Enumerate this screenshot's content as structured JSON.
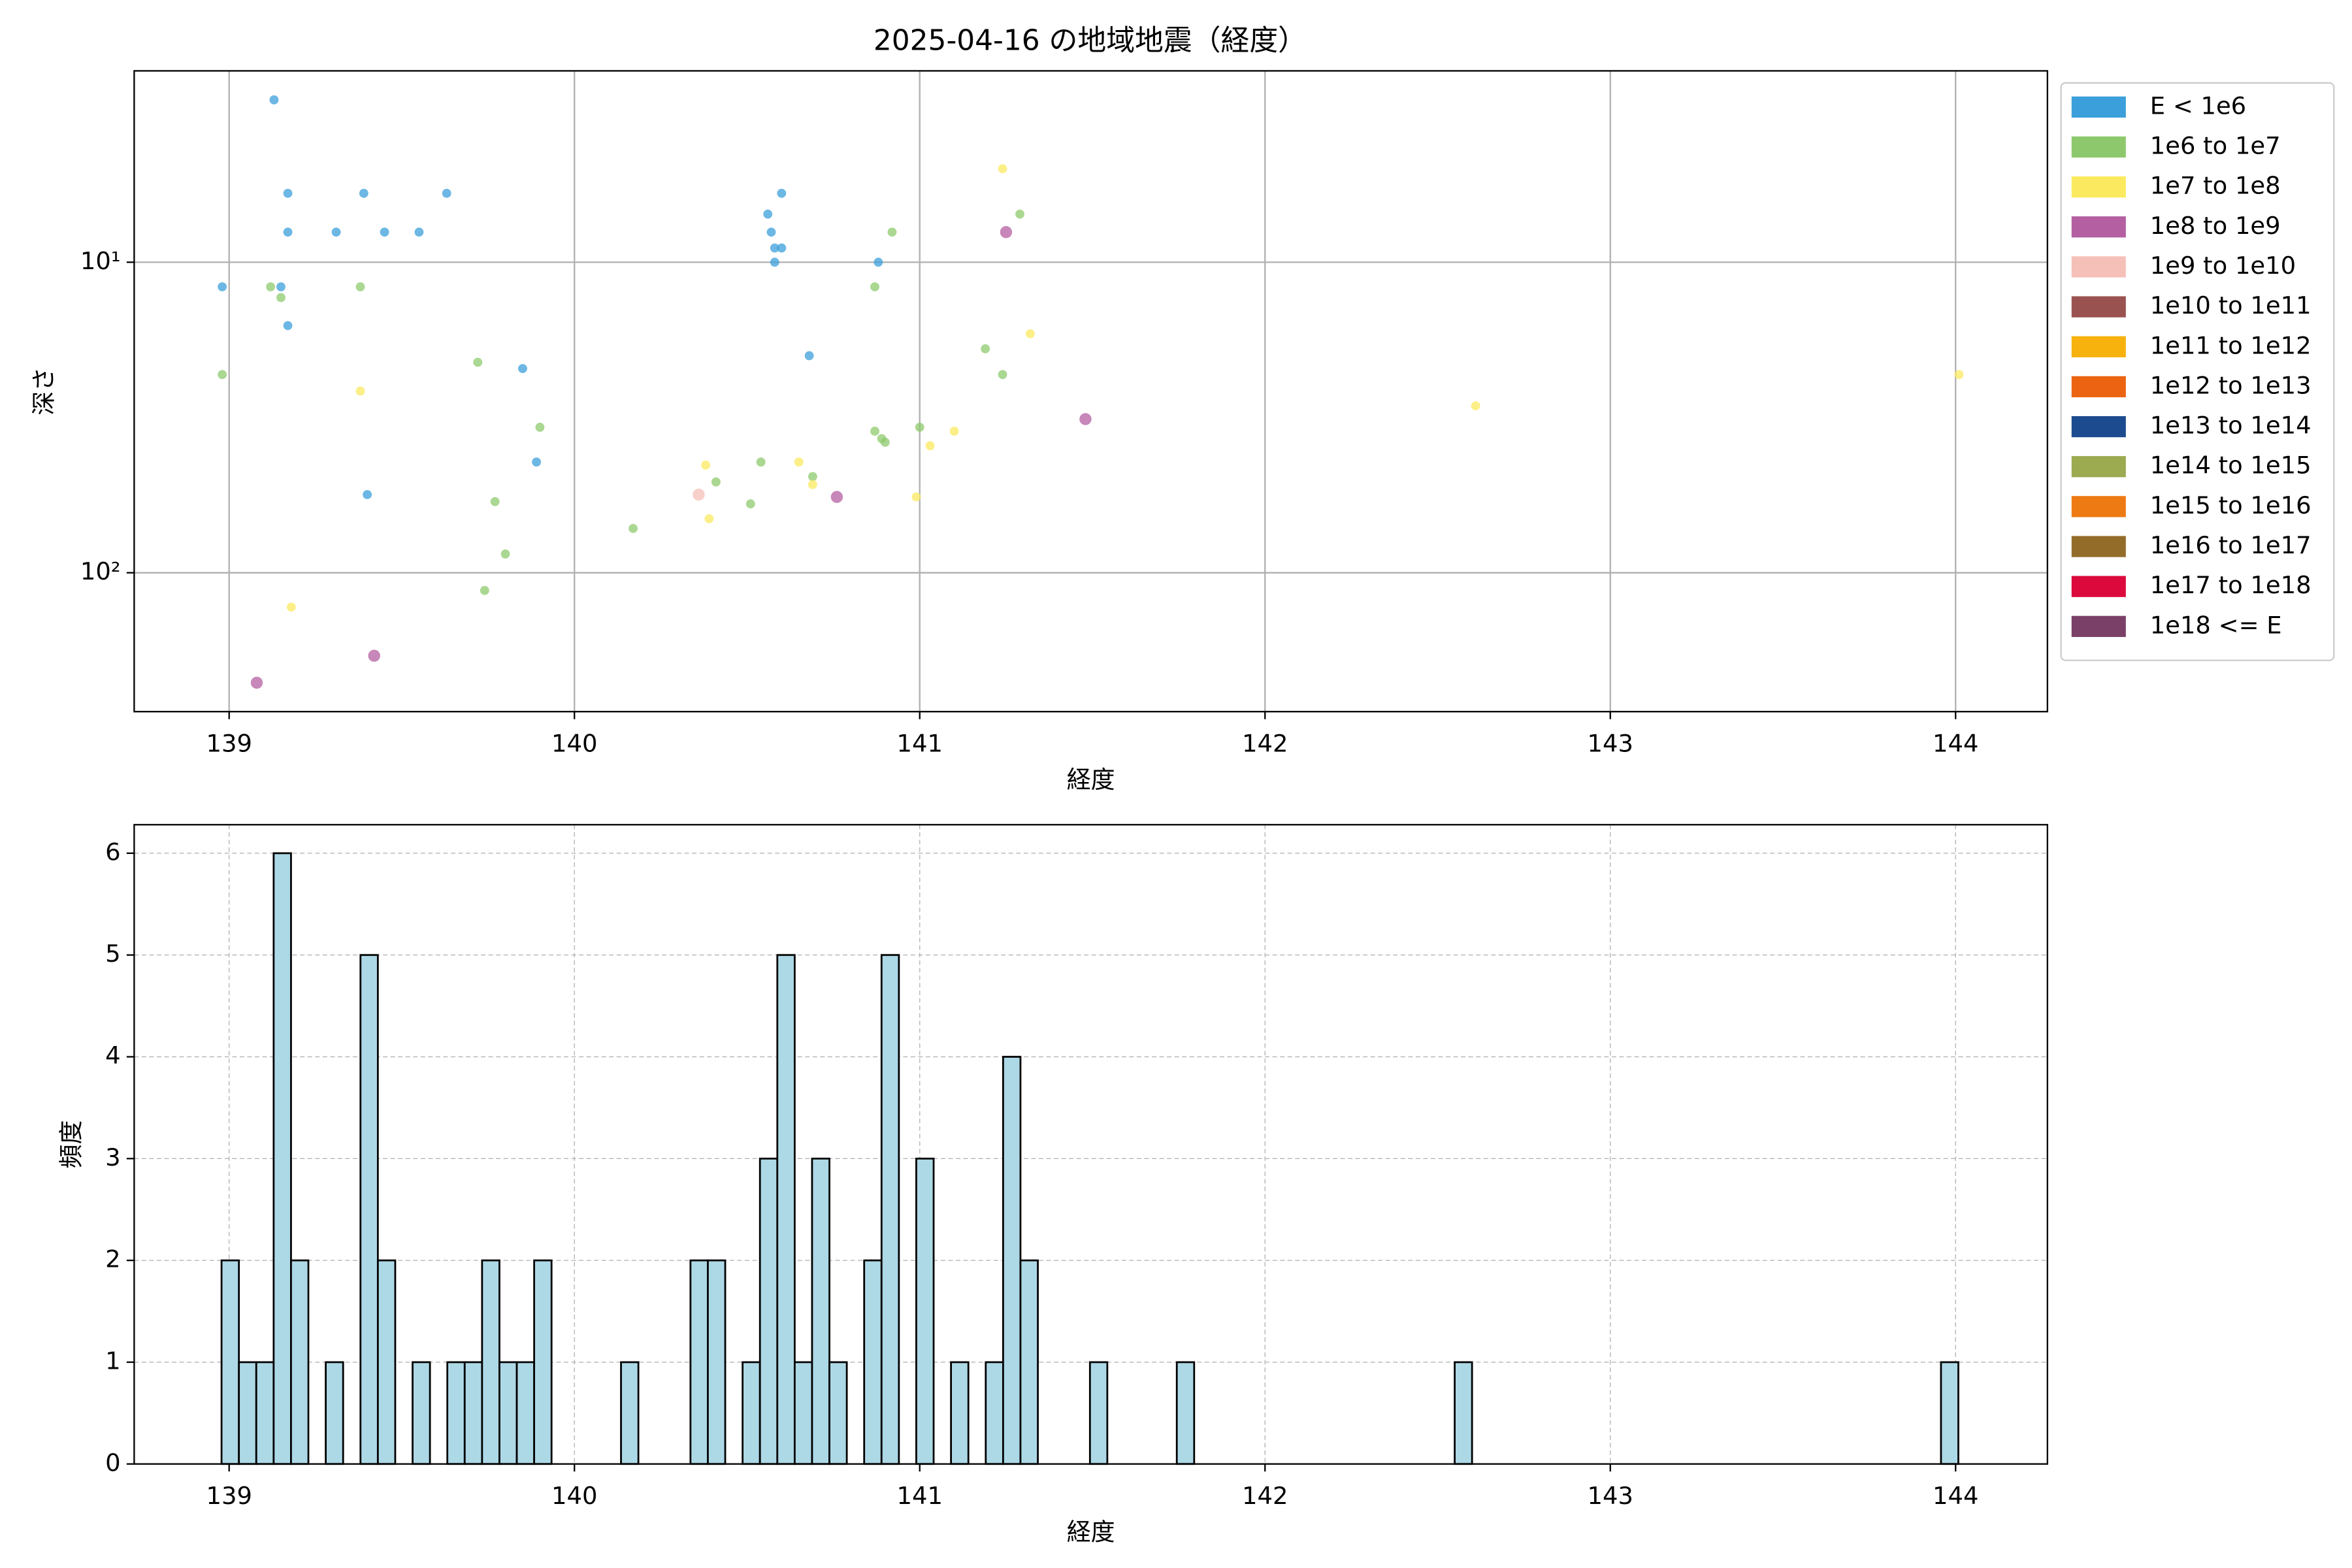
{
  "chart_data": [
    {
      "type": "scatter",
      "title": "2025-04-16 の地域地震（経度）",
      "xlabel": "経度",
      "ylabel": "深さ",
      "xlim": [
        138.725,
        144.266
      ],
      "xticks": [
        139,
        140,
        141,
        142,
        143,
        144
      ],
      "yscale": "log",
      "y_inverted": true,
      "ylim": [
        2.42,
        280
      ],
      "yticks": [
        {
          "value": 10,
          "label": "10¹"
        },
        {
          "value": 100,
          "label": "10²"
        }
      ],
      "grid": true,
      "legend": "outside-right",
      "series": [
        {
          "name": "E < 1e6",
          "color": "#3b9fdb",
          "x": [
            138.98,
            139.13,
            139.17,
            139.17,
            139.15,
            139.17,
            139.31,
            139.39,
            139.45,
            139.55,
            139.63,
            139.4,
            139.85,
            139.89,
            140.56,
            140.57,
            140.58,
            140.6,
            140.58,
            140.6,
            140.68,
            140.88
          ],
          "y": [
            12,
            3,
            6,
            8,
            12,
            16,
            8,
            6,
            8,
            8,
            6,
            56,
            22,
            44,
            7,
            8,
            9,
            9,
            10,
            6,
            20,
            10
          ]
        },
        {
          "name": "1e6 to 1e7",
          "color": "#8dc96c",
          "x": [
            138.98,
            139.12,
            139.15,
            139.38,
            139.72,
            139.9,
            139.77,
            139.8,
            139.74,
            140.17,
            140.41,
            140.51,
            140.54,
            140.69,
            140.87,
            140.87,
            140.89,
            140.9,
            140.92,
            141.0,
            141.19,
            141.24,
            141.29
          ],
          "y": [
            23,
            12,
            13,
            12,
            21,
            34,
            59,
            87,
            114,
            72,
            51,
            60,
            44,
            49,
            12,
            35,
            37,
            38,
            8,
            34,
            19,
            23,
            7
          ]
        },
        {
          "name": "1e7 to 1e8",
          "color": "#fbea5f",
          "x": [
            139.38,
            139.18,
            141.24,
            141.32,
            140.38,
            140.39,
            140.65,
            140.69,
            140.99,
            141.03,
            141.1,
            142.61,
            144.01
          ],
          "y": [
            26,
            129,
            5,
            17,
            45,
            67,
            44,
            52,
            57,
            39,
            35,
            29,
            23
          ]
        },
        {
          "name": "1e8 to 1e9",
          "color": "#b45fa2",
          "x": [
            139.08,
            139.42,
            140.76,
            141.25,
            141.48
          ],
          "y": [
            226,
            185,
            57,
            8,
            32
          ]
        },
        {
          "name": "1e9 to 1e10",
          "color": "#f5c0b8",
          "x": [
            140.36
          ],
          "y": [
            56
          ]
        },
        {
          "name": "1e10 to 1e11",
          "color": "#9a5250",
          "x": [],
          "y": []
        },
        {
          "name": "1e11 to 1e12",
          "color": "#f7b20e",
          "x": [],
          "y": []
        },
        {
          "name": "1e12 to 1e13",
          "color": "#ec6411",
          "x": [],
          "y": []
        },
        {
          "name": "1e13 to 1e14",
          "color": "#1d4b8f",
          "x": [],
          "y": []
        },
        {
          "name": "1e14 to 1e15",
          "color": "#9caa50",
          "x": [],
          "y": []
        },
        {
          "name": "1e15 to 1e16",
          "color": "#ee7a13",
          "x": [],
          "y": []
        },
        {
          "name": "1e16 to 1e17",
          "color": "#946c2a",
          "x": [],
          "y": []
        },
        {
          "name": "1e17 to 1e18",
          "color": "#dc0a3c",
          "x": [],
          "y": []
        },
        {
          "name": "1e18 <= E",
          "color": "#7a4067",
          "x": [],
          "y": []
        }
      ]
    },
    {
      "type": "histogram",
      "xlabel": "経度",
      "ylabel": "頻度",
      "color": "#add8e6",
      "edgecolor": "#000000",
      "xlim": [
        138.725,
        144.266
      ],
      "xticks": [
        139,
        140,
        141,
        142,
        143,
        144
      ],
      "ylim": [
        0,
        6.28
      ],
      "yticks": [
        0,
        1,
        2,
        3,
        4,
        5,
        6
      ],
      "grid": true,
      "grid_style": "dashed",
      "bins": [
        138.978,
        139.0283,
        139.0786,
        139.1289,
        139.1792,
        139.2295,
        139.2798,
        139.3301,
        139.3804,
        139.4307,
        139.481,
        139.5313,
        139.5816,
        139.6319,
        139.6822,
        139.7325,
        139.7828,
        139.8331,
        139.8834,
        139.9337,
        139.984,
        140.0343,
        140.0846,
        140.1349,
        140.1852,
        140.2355,
        140.2858,
        140.3361,
        140.3864,
        140.4367,
        140.487,
        140.5373,
        140.5876,
        140.6379,
        140.6882,
        140.7385,
        140.7888,
        140.8391,
        140.8894,
        140.9397,
        140.99,
        141.0403,
        141.0906,
        141.1409,
        141.1912,
        141.2415,
        141.2918,
        141.3421,
        141.3924,
        141.4427,
        141.493,
        141.5433,
        141.5936,
        141.6439,
        141.6942,
        141.7445,
        141.7948,
        141.8451,
        141.8954,
        141.9457,
        141.996,
        142.0463,
        142.0966,
        142.1469,
        142.1972,
        142.2475,
        142.2978,
        142.3481,
        142.3984,
        142.4487,
        142.499,
        142.5493,
        142.5996,
        142.6499,
        142.7002,
        142.7505,
        142.8008,
        142.8511,
        142.9014,
        142.9517,
        143.002,
        143.0523,
        143.1026,
        143.1529,
        143.2032,
        143.2535,
        143.3038,
        143.3541,
        143.4044,
        143.4547,
        143.505,
        143.5553,
        143.6056,
        143.6559,
        143.7062,
        143.7565,
        143.8068,
        143.8571,
        143.9074,
        143.9577,
        144.008
      ],
      "values": [
        2,
        1,
        1,
        6,
        2,
        0,
        1,
        0,
        5,
        2,
        0,
        1,
        0,
        1,
        1,
        2,
        1,
        1,
        2,
        0,
        0,
        0,
        0,
        1,
        0,
        0,
        0,
        2,
        2,
        0,
        1,
        3,
        5,
        1,
        3,
        1,
        0,
        2,
        5,
        0,
        3,
        0,
        1,
        0,
        1,
        4,
        2,
        0,
        0,
        0,
        1,
        0,
        0,
        0,
        0,
        1,
        0,
        0,
        0,
        0,
        0,
        0,
        0,
        0,
        0,
        0,
        0,
        0,
        0,
        0,
        0,
        1,
        0,
        0,
        0,
        0,
        0,
        0,
        0,
        0,
        0,
        0,
        0,
        0,
        0,
        0,
        0,
        0,
        0,
        0,
        0,
        0,
        0,
        0,
        0,
        0,
        0,
        0,
        0,
        1
      ]
    }
  ]
}
